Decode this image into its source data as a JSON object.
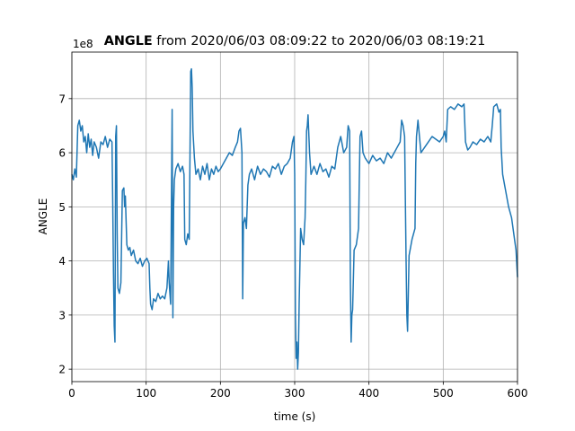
{
  "chart_data": {
    "type": "line",
    "title_bold": "ANGLE",
    "title": " from 2020/06/03 08:09:22 to 2020/06/03 08:19:21",
    "x_label": "time (s)",
    "y_label": "ANGLE",
    "offset_label": "1e8",
    "xlim": [
      0,
      600
    ],
    "xticks": [
      0,
      100,
      200,
      300,
      400,
      500,
      600
    ],
    "ylim": [
      1.77,
      7.86
    ],
    "yticks": [
      2,
      3,
      4,
      5,
      6,
      7
    ],
    "grid": true,
    "series": [
      {
        "name": "ANGLE",
        "color": "#1f77b4",
        "x": [
          0,
          2,
          4,
          6,
          8,
          10,
          12,
          14,
          16,
          18,
          20,
          22,
          24,
          26,
          28,
          30,
          33,
          36,
          39,
          42,
          45,
          48,
          51,
          54,
          55,
          56,
          57,
          58,
          59,
          60,
          61,
          62,
          64,
          66,
          68,
          70,
          71,
          72,
          74,
          76,
          78,
          80,
          83,
          86,
          89,
          92,
          95,
          98,
          101,
          104,
          105,
          106,
          108,
          110,
          113,
          116,
          119,
          122,
          125,
          128,
          130,
          131,
          133,
          135,
          136,
          137,
          138,
          140,
          143,
          146,
          149,
          151,
          152,
          154,
          156,
          158,
          159,
          160,
          161,
          162,
          163,
          165,
          167,
          170,
          173,
          176,
          179,
          182,
          185,
          188,
          191,
          194,
          197,
          200,
          204,
          208,
          212,
          216,
          220,
          223,
          225,
          227,
          229,
          230,
          231,
          233,
          235,
          237,
          239,
          242,
          246,
          250,
          254,
          258,
          262,
          266,
          270,
          274,
          278,
          282,
          286,
          290,
          294,
          297,
          299,
          300,
          301,
          302,
          303,
          304,
          305,
          306,
          308,
          310,
          312,
          314,
          315,
          316,
          317,
          318,
          320,
          322,
          326,
          330,
          334,
          338,
          342,
          346,
          350,
          354,
          358,
          362,
          366,
          370,
          372,
          374,
          375,
          376,
          377,
          378,
          380,
          383,
          386,
          387,
          388,
          390,
          392,
          395,
          400,
          405,
          410,
          415,
          420,
          425,
          430,
          434,
          438,
          442,
          444,
          446,
          448,
          450,
          451,
          452,
          454,
          458,
          462,
          463,
          464,
          466,
          470,
          475,
          480,
          485,
          490,
          495,
          500,
          502,
          504,
          506,
          510,
          515,
          520,
          525,
          528,
          530,
          533,
          536,
          540,
          545,
          550,
          555,
          560,
          564,
          566,
          568,
          572,
          575,
          577,
          578,
          580,
          584,
          588,
          592,
          596,
          598,
          600
        ],
        "values": [
          5.6,
          5.5,
          5.7,
          5.55,
          6.5,
          6.6,
          6.4,
          6.5,
          6.2,
          6.3,
          6.0,
          6.35,
          6.1,
          6.25,
          5.95,
          6.2,
          6.1,
          5.9,
          6.2,
          6.15,
          6.3,
          6.1,
          6.25,
          6.2,
          5.1,
          3.8,
          2.8,
          2.5,
          6.3,
          6.5,
          4.5,
          3.5,
          3.4,
          3.6,
          5.3,
          5.35,
          5.0,
          5.2,
          4.3,
          4.2,
          4.25,
          4.1,
          4.2,
          4.0,
          3.95,
          4.05,
          3.9,
          4.0,
          4.05,
          3.95,
          3.5,
          3.2,
          3.1,
          3.3,
          3.25,
          3.4,
          3.3,
          3.35,
          3.3,
          3.5,
          4.0,
          3.6,
          3.2,
          6.8,
          2.95,
          5.0,
          5.5,
          5.7,
          5.8,
          5.65,
          5.75,
          5.6,
          4.4,
          4.3,
          4.5,
          4.4,
          5.9,
          7.5,
          7.55,
          7.2,
          6.4,
          5.9,
          5.6,
          5.7,
          5.5,
          5.75,
          5.6,
          5.8,
          5.5,
          5.7,
          5.6,
          5.75,
          5.65,
          5.7,
          5.8,
          5.9,
          6.0,
          5.95,
          6.1,
          6.2,
          6.4,
          6.45,
          6.0,
          3.3,
          4.7,
          4.8,
          4.6,
          5.4,
          5.6,
          5.7,
          5.5,
          5.75,
          5.6,
          5.7,
          5.65,
          5.55,
          5.75,
          5.7,
          5.8,
          5.6,
          5.75,
          5.8,
          5.9,
          6.2,
          6.3,
          5.6,
          3.0,
          2.2,
          2.5,
          2.0,
          2.3,
          3.2,
          4.6,
          4.4,
          4.3,
          4.8,
          5.5,
          6.4,
          6.5,
          6.7,
          6.0,
          5.6,
          5.75,
          5.6,
          5.8,
          5.65,
          5.7,
          5.55,
          5.75,
          5.7,
          6.1,
          6.3,
          6.0,
          6.1,
          6.5,
          6.4,
          3.6,
          2.5,
          3.0,
          3.1,
          4.2,
          4.3,
          4.6,
          5.5,
          6.3,
          6.4,
          6.0,
          5.9,
          5.8,
          5.95,
          5.85,
          5.9,
          5.8,
          6.0,
          5.9,
          6.0,
          6.1,
          6.2,
          6.6,
          6.5,
          6.3,
          4.0,
          3.0,
          2.7,
          4.1,
          4.4,
          4.6,
          5.8,
          6.3,
          6.6,
          6.0,
          6.1,
          6.2,
          6.3,
          6.25,
          6.2,
          6.3,
          6.4,
          6.2,
          6.8,
          6.85,
          6.8,
          6.9,
          6.85,
          6.9,
          6.2,
          6.05,
          6.1,
          6.2,
          6.15,
          6.25,
          6.2,
          6.3,
          6.2,
          6.5,
          6.85,
          6.9,
          6.75,
          6.8,
          6.1,
          5.6,
          5.3,
          5.0,
          4.8,
          4.4,
          4.2,
          3.7
        ]
      }
    ]
  }
}
